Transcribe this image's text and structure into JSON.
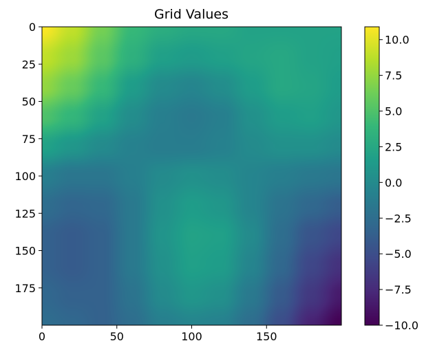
{
  "chart_data": {
    "type": "heatmap",
    "title": "Grid Values",
    "xlabel": "",
    "ylabel": "",
    "grid": false,
    "colormap": "viridis",
    "x_range": [
      0,
      200
    ],
    "y_range": [
      0,
      200
    ],
    "y_inverted": true,
    "x_ticks": [
      0,
      50,
      100,
      150
    ],
    "y_ticks": [
      0,
      25,
      50,
      75,
      100,
      125,
      150,
      175
    ],
    "colorbar": {
      "min": -10.0,
      "max": 10.9,
      "ticks": [
        -10.0,
        -7.5,
        -5.0,
        -2.5,
        0.0,
        2.5,
        5.0,
        7.5,
        10.0
      ],
      "tick_labels": [
        "−10.0",
        "−7.5",
        "−5.0",
        "−2.5",
        "0.0",
        "2.5",
        "5.0",
        "7.5",
        "10.0"
      ]
    },
    "values": [
      [
        10.9,
        9.0,
        6.5,
        4.0,
        3.0,
        2.5,
        2.5,
        2.0,
        2.0,
        2.0,
        2.0
      ],
      [
        9.0,
        7.8,
        5.5,
        3.3,
        1.8,
        1.4,
        1.8,
        2.2,
        2.5,
        2.0,
        1.8
      ],
      [
        7.5,
        6.0,
        4.0,
        1.5,
        0.0,
        -0.5,
        0.2,
        1.5,
        2.5,
        2.2,
        1.5
      ],
      [
        5.0,
        3.8,
        2.0,
        0.2,
        -1.0,
        -1.5,
        -1.0,
        0.5,
        1.5,
        1.8,
        1.0
      ],
      [
        2.0,
        1.0,
        0.0,
        -0.8,
        -1.2,
        -1.2,
        -0.8,
        0.0,
        0.5,
        0.5,
        0.0
      ],
      [
        -1.0,
        -1.8,
        -1.8,
        -1.0,
        0.0,
        0.5,
        0.2,
        -0.5,
        -1.0,
        -1.5,
        -1.8
      ],
      [
        -2.5,
        -3.2,
        -3.0,
        -1.5,
        0.5,
        1.5,
        1.0,
        -0.5,
        -2.0,
        -3.0,
        -3.8
      ],
      [
        -3.5,
        -4.0,
        -3.5,
        -1.5,
        0.8,
        2.0,
        1.8,
        0.0,
        -2.5,
        -4.5,
        -5.5
      ],
      [
        -3.5,
        -4.0,
        -3.5,
        -1.5,
        0.5,
        1.8,
        1.5,
        -0.5,
        -3.0,
        -5.5,
        -7.0
      ],
      [
        -3.0,
        -3.5,
        -3.5,
        -2.0,
        0.0,
        1.0,
        0.5,
        -1.5,
        -4.0,
        -6.5,
        -8.5
      ],
      [
        -2.5,
        -3.0,
        -3.5,
        -2.5,
        -1.0,
        -0.5,
        -0.8,
        -2.5,
        -5.0,
        -8.0,
        -10.0
      ]
    ]
  }
}
